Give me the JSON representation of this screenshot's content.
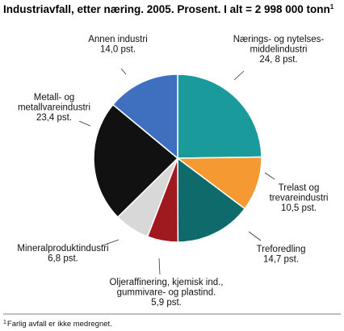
{
  "chart_data": {
    "type": "pie",
    "title": "Industriavfall, etter næring. 2005. Prosent. I alt = 2 998 000 tonn",
    "title_superscript": "1",
    "slices": [
      {
        "lines": [
          "Nærings- og nytelses-",
          "middelindustri",
          "24, 8 pst."
        ],
        "value": 24.8,
        "color": "#1a9a9a"
      },
      {
        "lines": [
          "Trelast og",
          "trevareindustri",
          "10,5 pst."
        ],
        "value": 10.5,
        "color": "#f59a32"
      },
      {
        "lines": [
          "Treforedling",
          "14,7 pst."
        ],
        "value": 14.7,
        "color": "#0f6b6b"
      },
      {
        "lines": [
          "Oljeraffinering, kjemisk ind.,",
          "gummivare- og plastind.",
          "5,9 pst."
        ],
        "value": 5.9,
        "color": "#a0191e"
      },
      {
        "lines": [
          "Mineralproduktindustri",
          "6,8 pst."
        ],
        "value": 6.8,
        "color": "#d8d8d8"
      },
      {
        "lines": [
          "Metall- og",
          "metallvareindustri",
          "23,4 pst."
        ],
        "value": 23.4,
        "color": "#111111"
      },
      {
        "lines": [
          "Annen industri",
          "14,0 pst."
        ],
        "value": 14.0,
        "color": "#3f6fbf"
      }
    ],
    "legend": "none",
    "grid": false
  },
  "footnote": {
    "marker": "1",
    "text": "Farlig avfall er ikke medregnet."
  },
  "divider_color": "#555555"
}
